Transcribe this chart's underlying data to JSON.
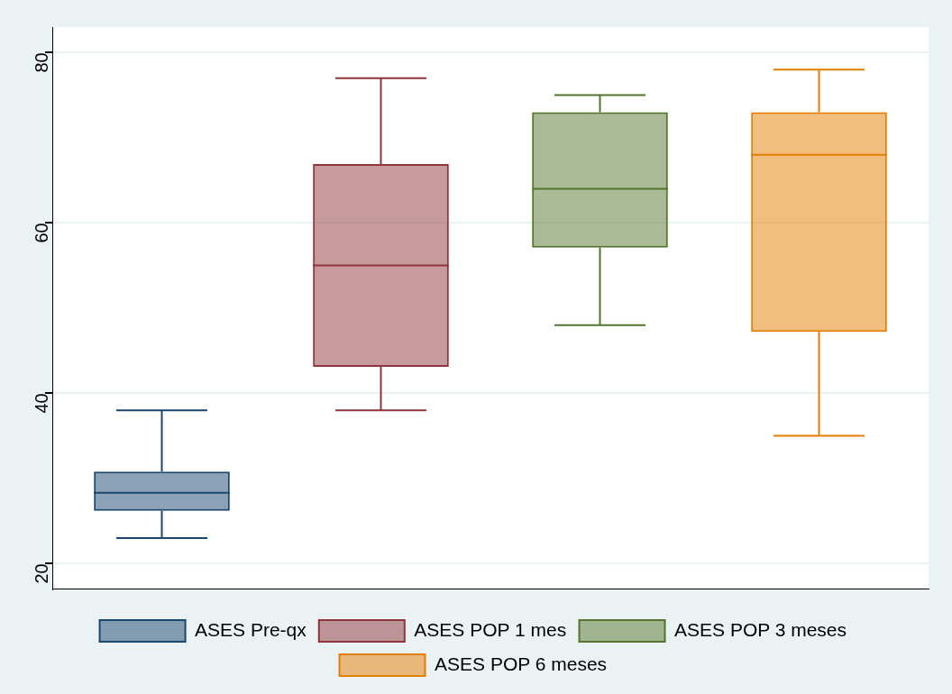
{
  "chart_data": {
    "type": "box",
    "categories": [
      null,
      null,
      null,
      null
    ],
    "ylim": [
      17,
      83
    ],
    "yticks": [
      20,
      40,
      60,
      80
    ],
    "grid": "y",
    "legend": "bottom",
    "series": [
      {
        "name": "ASES Pre-qx",
        "color": "#1a476f",
        "boxes": [
          {
            "low": 23,
            "q1": 26.2,
            "median": 28.3,
            "q3": 30.8,
            "high": 38
          },
          null,
          null,
          null
        ]
      },
      {
        "name": "ASES POP 1 mes",
        "color": "#90353b",
        "boxes": [
          null,
          {
            "low": 38,
            "q1": 43.1,
            "median": 55,
            "q3": 66.9,
            "high": 77
          },
          null,
          null
        ]
      },
      {
        "name": "ASES POP 3 meses",
        "color": "#55752f",
        "boxes": [
          null,
          null,
          {
            "low": 48,
            "q1": 57.1,
            "median": 64,
            "q3": 73,
            "high": 75
          },
          null
        ]
      },
      {
        "name": "ASES POP 6 meses",
        "color": "#e37e00",
        "boxes": [
          null,
          null,
          null,
          {
            "low": 35,
            "q1": 47.2,
            "median": 68,
            "q3": 73,
            "high": 78
          }
        ]
      }
    ]
  }
}
